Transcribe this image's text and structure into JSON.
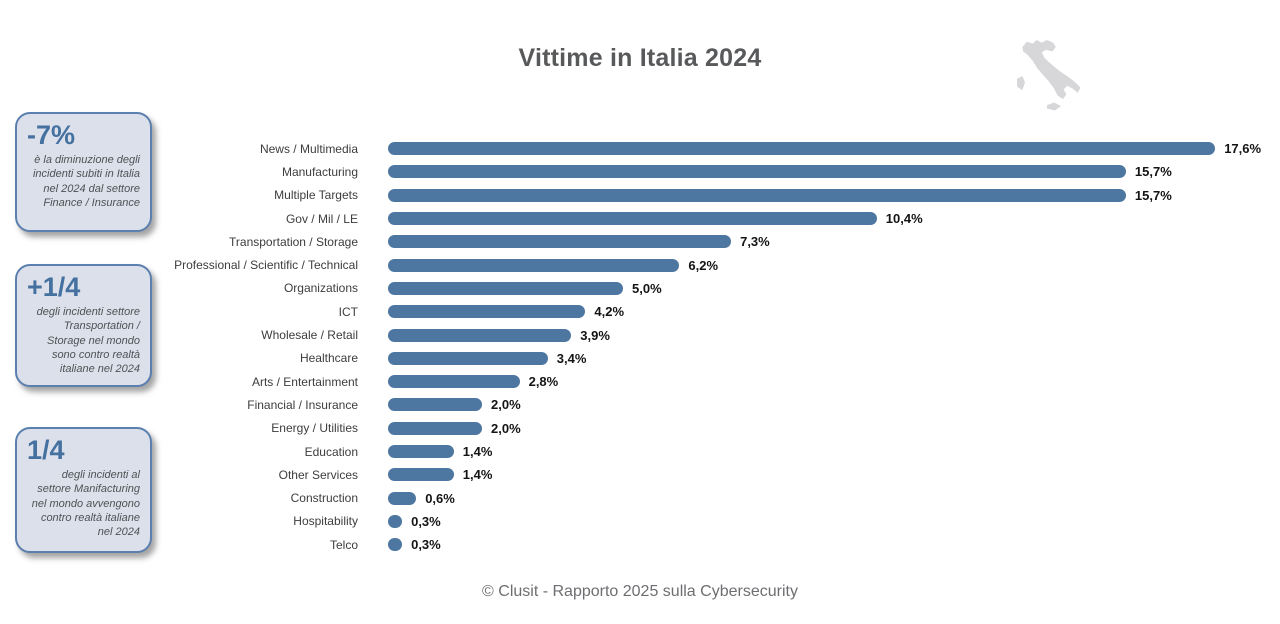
{
  "title": "Vittime in Italia 2024",
  "footer": "© Clusit - Rapporto 2025 sulla Cybersecurity",
  "callouts": [
    {
      "headline": "-7%",
      "body": "è la diminuzione degli incidenti subiti in Italia nel 2024 dal settore Finance / Insurance"
    },
    {
      "headline": "+1/4",
      "body": "degli incidenti settore Transportation / Storage nel mondo sono contro realtà italiane nel 2024"
    },
    {
      "headline": "1/4",
      "body": "degli incidenti al settore Manifacturing nel mondo avvengono contro realtà italiane nel 2024"
    }
  ],
  "icons": {
    "italy_map": "italy-map-silhouette"
  },
  "colors": {
    "bar": "#4d76a1",
    "callout_bg": "#dce0eb",
    "callout_border": "#5b7fae",
    "callout_headline": "#44719f",
    "title_text": "#58595b",
    "footer_text": "#6d6e71",
    "map_fill": "#d7d7da"
  },
  "chart_data": {
    "type": "bar",
    "orientation": "horizontal",
    "title": "Vittime in Italia 2024",
    "categories": [
      "News / Multimedia",
      "Manufacturing",
      "Multiple Targets",
      "Gov / Mil / LE",
      "Transportation / Storage",
      "Professional / Scientific / Technical",
      "Organizations",
      "ICT",
      "Wholesale / Retail",
      "Healthcare",
      "Arts / Entertainment",
      "Financial / Insurance",
      "Energy / Utilities",
      "Education",
      "Other Services",
      "Construction",
      "Hospitability",
      "Telco"
    ],
    "values": [
      17.6,
      15.7,
      15.7,
      10.4,
      7.3,
      6.2,
      5.0,
      4.2,
      3.9,
      3.4,
      2.8,
      2.0,
      2.0,
      1.4,
      1.4,
      0.6,
      0.3,
      0.3
    ],
    "value_labels": [
      "17,6%",
      "15,7%",
      "15,7%",
      "10,4%",
      "7,3%",
      "6,2%",
      "5,0%",
      "4,2%",
      "3,9%",
      "3,4%",
      "2,8%",
      "2,0%",
      "2,0%",
      "1,4%",
      "1,4%",
      "0,6%",
      "0,3%",
      "0,3%"
    ],
    "xlabel": "",
    "ylabel": "",
    "xlim": [
      0,
      18
    ],
    "grid": false,
    "legend": false,
    "bar_color": "#4d76a1"
  }
}
